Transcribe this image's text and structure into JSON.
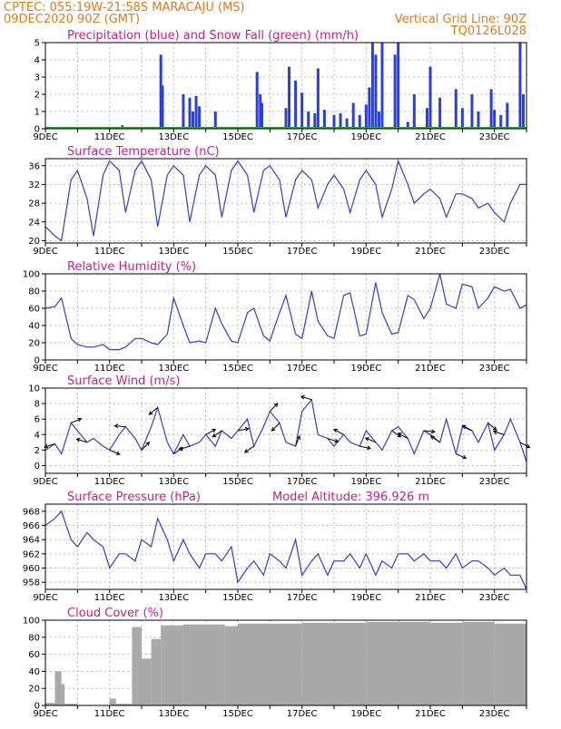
{
  "header": {
    "line1": "CPTEC:   055:19W-21:58S   MARACAJU (MS)",
    "line2": "09DEC2020 90Z (GMT)",
    "right1": "Vertical Grid Line: 90Z",
    "right2": "TQ0126L028"
  },
  "colors": {
    "line": "#2a3fe0",
    "snow": "#22aa22",
    "cloud": "#a9a9a9",
    "title": "#d81b78",
    "header": "#e07a1a",
    "grid": "#bbbbbb"
  },
  "x_days": [
    "9DEC",
    "11DEC",
    "13DEC",
    "15DEC",
    "17DEC",
    "19DEC",
    "21DEC",
    "23DEC"
  ],
  "x_range": [
    9,
    24
  ],
  "chart_data": [
    {
      "id": "precip",
      "type": "bar",
      "title": "Precipitation (blue) and Snow Fall (green) (mm/h)",
      "ylim": [
        0,
        5
      ],
      "yticks": [
        0,
        1,
        2,
        3,
        4,
        5
      ],
      "x": [
        11.4,
        12.6,
        12.65,
        13.3,
        13.5,
        13.6,
        13.7,
        13.8,
        14.3,
        15.6,
        15.7,
        15.75,
        16.5,
        16.6,
        16.8,
        17.0,
        17.2,
        17.4,
        17.5,
        17.7,
        18.0,
        18.2,
        18.4,
        18.6,
        18.8,
        19.0,
        19.1,
        19.2,
        19.3,
        19.4,
        19.5,
        19.9,
        20.0,
        20.3,
        20.5,
        20.9,
        21.0,
        21.3,
        21.8,
        22.0,
        22.3,
        22.5,
        22.9,
        23.0,
        23.2,
        23.4,
        23.8,
        23.9
      ],
      "values": [
        0.2,
        4.3,
        2.5,
        2.0,
        1.8,
        1.0,
        1.9,
        1.3,
        1.0,
        3.3,
        2.0,
        1.5,
        1.2,
        3.6,
        2.8,
        2.1,
        1.0,
        0.9,
        3.5,
        1.1,
        0.8,
        0.9,
        0.6,
        1.5,
        0.8,
        1.4,
        2.4,
        5.0,
        4.3,
        1.0,
        5.0,
        4.3,
        5.0,
        0.4,
        2.0,
        1.2,
        3.6,
        1.8,
        2.3,
        1.2,
        2.0,
        1.0,
        2.3,
        1.1,
        0.8,
        1.5,
        5.0,
        2.0
      ],
      "snow": 0
    },
    {
      "id": "temp",
      "type": "line",
      "title": "Surface Temperature (nC)",
      "ylim": [
        19.5,
        37.5
      ],
      "yticks": [
        20,
        24,
        28,
        32,
        36
      ],
      "x": [
        9.0,
        9.3,
        9.5,
        9.8,
        10.0,
        10.3,
        10.5,
        10.8,
        11.0,
        11.3,
        11.5,
        11.8,
        12.0,
        12.3,
        12.5,
        12.8,
        13.0,
        13.3,
        13.5,
        13.8,
        14.0,
        14.3,
        14.5,
        14.8,
        15.0,
        15.3,
        15.5,
        15.8,
        16.0,
        16.3,
        16.5,
        16.8,
        17.0,
        17.3,
        17.5,
        17.8,
        18.0,
        18.3,
        18.5,
        18.8,
        19.0,
        19.3,
        19.5,
        19.8,
        20.0,
        20.3,
        20.5,
        20.8,
        21.0,
        21.3,
        21.5,
        21.8,
        22.0,
        22.3,
        22.5,
        22.8,
        23.0,
        23.3,
        23.5,
        23.8,
        24.0
      ],
      "values": [
        23,
        21,
        20,
        33,
        35,
        29,
        21,
        34,
        37,
        35,
        26,
        35,
        37,
        33,
        23,
        34,
        36,
        34,
        24,
        34,
        36,
        34,
        25,
        35,
        37,
        34,
        26,
        35,
        36,
        33,
        25,
        33,
        35,
        33,
        27,
        32,
        34,
        31,
        26,
        33,
        35,
        32,
        25,
        31,
        37,
        32,
        28,
        30,
        31,
        29,
        25,
        30,
        30,
        29,
        27,
        28,
        26,
        24,
        28,
        32,
        32
      ]
    },
    {
      "id": "rh",
      "type": "line",
      "title": "Relative Humidity (%)",
      "ylim": [
        0,
        100
      ],
      "yticks": [
        0,
        20,
        40,
        60,
        80,
        100
      ],
      "x": [
        9.0,
        9.3,
        9.5,
        9.8,
        10.0,
        10.3,
        10.5,
        10.8,
        11.0,
        11.3,
        11.5,
        11.8,
        12.0,
        12.3,
        12.5,
        12.8,
        13.0,
        13.3,
        13.5,
        13.8,
        14.0,
        14.3,
        14.5,
        14.8,
        15.0,
        15.3,
        15.5,
        15.8,
        16.0,
        16.3,
        16.5,
        16.8,
        17.0,
        17.3,
        17.5,
        17.8,
        18.0,
        18.3,
        18.5,
        18.8,
        19.0,
        19.3,
        19.5,
        19.8,
        20.0,
        20.3,
        20.5,
        20.8,
        21.0,
        21.3,
        21.5,
        21.8,
        22.0,
        22.3,
        22.5,
        22.8,
        23.0,
        23.3,
        23.5,
        23.8,
        24.0
      ],
      "values": [
        60,
        62,
        72,
        25,
        18,
        15,
        15,
        18,
        12,
        12,
        15,
        25,
        25,
        20,
        18,
        30,
        72,
        40,
        20,
        22,
        20,
        60,
        42,
        22,
        20,
        55,
        60,
        28,
        22,
        55,
        75,
        30,
        25,
        80,
        45,
        28,
        25,
        75,
        78,
        28,
        30,
        90,
        55,
        30,
        32,
        75,
        70,
        48,
        60,
        100,
        65,
        60,
        88,
        85,
        60,
        72,
        85,
        80,
        82,
        60,
        64
      ]
    },
    {
      "id": "wind",
      "type": "line",
      "title": "Surface Wind (m/s)",
      "ylim": [
        -1,
        10
      ],
      "yticks": [
        0,
        2,
        4,
        6,
        8,
        10
      ],
      "x": [
        9.0,
        9.3,
        9.5,
        9.8,
        10.0,
        10.3,
        10.5,
        10.8,
        11.0,
        11.3,
        11.5,
        11.8,
        12.0,
        12.3,
        12.5,
        12.8,
        13.0,
        13.3,
        13.5,
        13.8,
        14.0,
        14.3,
        14.5,
        14.8,
        15.0,
        15.3,
        15.5,
        15.8,
        16.0,
        16.3,
        16.5,
        16.8,
        17.0,
        17.3,
        17.5,
        17.8,
        18.0,
        18.3,
        18.5,
        18.8,
        19.0,
        19.3,
        19.5,
        19.8,
        20.0,
        20.3,
        20.5,
        20.8,
        21.0,
        21.3,
        21.5,
        21.8,
        22.0,
        22.3,
        22.5,
        22.8,
        23.0,
        23.3,
        23.5,
        23.8,
        24.0
      ],
      "values": [
        2.0,
        2.8,
        1.5,
        5.5,
        4.5,
        3.0,
        3.5,
        2.5,
        2.0,
        4.0,
        5.0,
        3.5,
        2.0,
        5.0,
        7.5,
        3.0,
        1.5,
        4.0,
        2.5,
        3.0,
        4.0,
        2.5,
        4.5,
        3.5,
        4.5,
        6.0,
        2.5,
        5.0,
        7.0,
        5.5,
        3.0,
        2.5,
        7.0,
        8.5,
        4.0,
        3.5,
        2.5,
        4.0,
        3.0,
        2.5,
        4.5,
        3.0,
        2.0,
        4.5,
        5.0,
        3.5,
        1.5,
        4.5,
        4.0,
        3.0,
        6.0,
        1.5,
        5.0,
        4.5,
        3.0,
        5.5,
        2.0,
        4.0,
        6.0,
        3.0,
        0.5
      ],
      "arrows": [
        [
          9.3,
          0.3
        ],
        [
          9.8,
          -0.4
        ],
        [
          10.3,
          -0.3
        ],
        [
          11.0,
          0.4
        ],
        [
          11.5,
          -0.1
        ],
        [
          12.0,
          -0.8
        ],
        [
          12.5,
          0.7
        ],
        [
          13.0,
          -0.6
        ],
        [
          13.5,
          0.3
        ],
        [
          14.0,
          -0.5
        ],
        [
          14.5,
          0.6
        ],
        [
          15.0,
          -0.2
        ],
        [
          15.5,
          0.6
        ],
        [
          16.0,
          -0.8
        ],
        [
          16.3,
          0.8
        ],
        [
          16.8,
          -1.2
        ],
        [
          17.3,
          -0.3
        ],
        [
          17.8,
          0.3
        ],
        [
          18.3,
          -0.5
        ],
        [
          18.8,
          0.2
        ],
        [
          19.3,
          -0.4
        ],
        [
          19.8,
          0.6
        ],
        [
          20.3,
          -0.5
        ],
        [
          20.8,
          0.1
        ],
        [
          21.3,
          -0.6
        ],
        [
          21.8,
          0.4
        ],
        [
          22.3,
          -0.5
        ],
        [
          22.8,
          0.7
        ],
        [
          23.3,
          -0.3
        ],
        [
          23.8,
          0.5
        ]
      ]
    },
    {
      "id": "pres",
      "type": "line",
      "title": "Surface Pressure (hPa)",
      "annotation": "Model Altitude: 396.926 m",
      "ylim": [
        957,
        969
      ],
      "yticks": [
        958,
        960,
        962,
        964,
        966,
        968
      ],
      "x": [
        9.0,
        9.3,
        9.5,
        9.8,
        10.0,
        10.3,
        10.5,
        10.8,
        11.0,
        11.3,
        11.5,
        11.8,
        12.0,
        12.3,
        12.5,
        12.8,
        13.0,
        13.3,
        13.5,
        13.8,
        14.0,
        14.3,
        14.5,
        14.8,
        15.0,
        15.3,
        15.5,
        15.8,
        16.0,
        16.3,
        16.5,
        16.8,
        17.0,
        17.3,
        17.5,
        17.8,
        18.0,
        18.3,
        18.5,
        18.8,
        19.0,
        19.3,
        19.5,
        19.8,
        20.0,
        20.3,
        20.5,
        20.8,
        21.0,
        21.3,
        21.5,
        21.8,
        22.0,
        22.3,
        22.5,
        22.8,
        23.0,
        23.3,
        23.5,
        23.8,
        24.0
      ],
      "values": [
        966,
        967,
        968,
        964,
        963,
        965,
        964,
        963,
        960,
        962,
        962,
        961,
        964,
        963,
        967,
        964,
        961,
        964,
        962,
        960,
        962,
        962,
        961,
        963,
        958,
        960,
        961,
        959,
        962,
        961,
        960,
        964,
        959,
        961,
        962,
        959,
        961,
        961,
        962,
        960,
        962,
        959,
        961,
        960,
        962,
        962,
        961,
        962,
        961,
        961,
        960,
        962,
        960,
        961,
        961,
        960,
        959,
        960,
        959,
        959,
        957
      ]
    },
    {
      "id": "cloud",
      "type": "bar",
      "title": "Cloud Cover (%)",
      "ylim": [
        0,
        100
      ],
      "yticks": [
        0,
        20,
        40,
        60,
        80,
        100
      ],
      "segments": [
        [
          9.0,
          9.3,
          3
        ],
        [
          9.3,
          9.5,
          40
        ],
        [
          9.5,
          9.6,
          25
        ],
        [
          9.6,
          10.0,
          2
        ],
        [
          10.0,
          11.0,
          0
        ],
        [
          11.0,
          11.2,
          8
        ],
        [
          11.2,
          11.7,
          2
        ],
        [
          11.7,
          12.0,
          92
        ],
        [
          12.0,
          12.3,
          55
        ],
        [
          12.3,
          12.6,
          78
        ],
        [
          12.6,
          13.3,
          94
        ],
        [
          13.3,
          14.6,
          95
        ],
        [
          14.6,
          15.0,
          93
        ],
        [
          15.0,
          17.0,
          96
        ],
        [
          17.0,
          19.0,
          97
        ],
        [
          19.0,
          21.0,
          98
        ],
        [
          21.0,
          22.0,
          97
        ],
        [
          22.0,
          23.0,
          98
        ],
        [
          23.0,
          24.0,
          96
        ]
      ]
    }
  ]
}
